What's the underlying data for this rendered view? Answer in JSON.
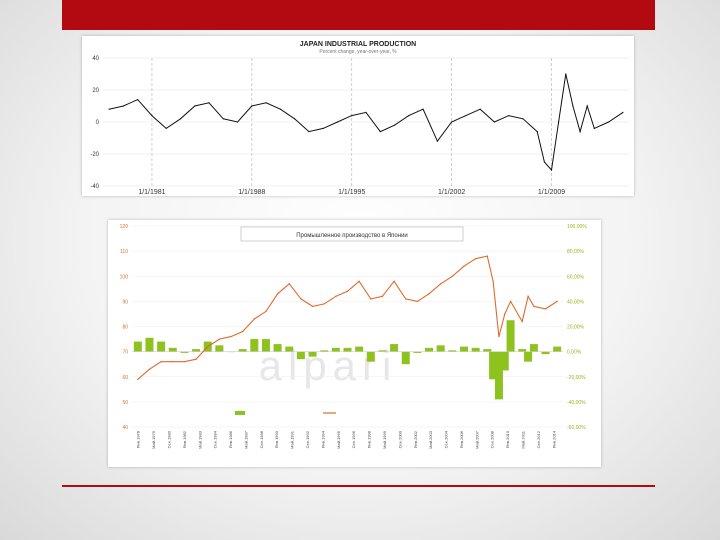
{
  "slide": {
    "accent_color": "#b30a12"
  },
  "chart_data": [
    {
      "type": "line",
      "title": "JAPAN INDUSTRIAL PRODUCTION",
      "subtitle": "Percent change, year-over-year, %",
      "ylim": [
        -40,
        40
      ],
      "y_ticks": [
        "40",
        "20",
        "0",
        "-20",
        "-40"
      ],
      "x_tick_labels": [
        "1/1/1981",
        "1/1/1988",
        "1/1/1995",
        "1/1/2002",
        "1/1/2009"
      ],
      "grid": "dashed vertical lines at each x tick",
      "series": [
        {
          "color": "#111111",
          "x": [
            1978,
            1979,
            1980,
            1981,
            1982,
            1983,
            1984,
            1985,
            1986,
            1987,
            1988,
            1989,
            1990,
            1991,
            1992,
            1993,
            1994,
            1995,
            1996,
            1997,
            1998,
            1999,
            2000,
            2001,
            2002,
            2003,
            2004,
            2005,
            2006,
            2007,
            2008,
            2008.5,
            2009,
            2009.5,
            2010,
            2010.5,
            2011,
            2011.5,
            2012,
            2013,
            2014
          ],
          "values": [
            8,
            10,
            14,
            4,
            -4,
            2,
            10,
            12,
            2,
            0,
            10,
            12,
            8,
            2,
            -6,
            -4,
            0,
            4,
            6,
            -6,
            -2,
            4,
            8,
            -12,
            0,
            4,
            8,
            0,
            4,
            2,
            -6,
            -25,
            -30,
            0,
            30,
            10,
            -6,
            10,
            -4,
            0,
            6
          ]
        }
      ]
    },
    {
      "type": "line",
      "title": "Промышленное производство в Японии",
      "ylim_left": [
        40,
        120
      ],
      "y_ticks_left": [
        "120",
        "110",
        "100",
        "90",
        "80",
        "70",
        "60",
        "50",
        "40"
      ],
      "ylim_right": [
        -60,
        100
      ],
      "y_ticks_right": [
        "100,00%",
        "80,00%",
        "60,00%",
        "40,00%",
        "20,00%",
        "0,00%",
        "-20,00%",
        "-40,00%",
        "-60,00%"
      ],
      "x_tick_labels": [
        "Янв.1978",
        "Май.1979",
        "Сен.1980",
        "Янв.1982",
        "Май.1983",
        "Сен.1984",
        "Янв.1986",
        "Май.1987",
        "Сен.1988",
        "Янв.1990",
        "Май.1991",
        "Сен.1992",
        "Янв.1994",
        "Май.1995",
        "Сен.1996",
        "Янв.1998",
        "Май.1999",
        "Сен.2000",
        "Янв.2002",
        "Май.2003",
        "Сен.2004",
        "Янв.2006",
        "Май.2007",
        "Сен.2008",
        "Янв.2010",
        "Май.2011",
        "Сен.2012",
        "Янв.2014"
      ],
      "watermark": "alpari",
      "series": [
        {
          "name": "",
          "type": "line",
          "axis": "left",
          "color": "#e06a2a",
          "x": [
            1978,
            1979,
            1980,
            1981,
            1982,
            1983,
            1984,
            1985,
            1986,
            1987,
            1988,
            1989,
            1990,
            1991,
            1992,
            1993,
            1994,
            1995,
            1996,
            1997,
            1998,
            1999,
            2000,
            2001,
            2002,
            2003,
            2004,
            2005,
            2006,
            2007,
            2008,
            2008.5,
            2009,
            2009.5,
            2010,
            2011,
            2011.5,
            2012,
            2013,
            2014
          ],
          "values": [
            59,
            63,
            66,
            66,
            66,
            67,
            72,
            75,
            76,
            78,
            83,
            86,
            93,
            97,
            91,
            88,
            89,
            92,
            94,
            98,
            91,
            92,
            98,
            91,
            90,
            93,
            97,
            100,
            104,
            107,
            108,
            98,
            76,
            85,
            90,
            82,
            92,
            88,
            87,
            90
          ]
        },
        {
          "name": "",
          "type": "bar",
          "axis": "right",
          "color": "#8dc21f",
          "x": [
            1978,
            1979,
            1980,
            1981,
            1982,
            1983,
            1984,
            1985,
            1986,
            1987,
            1988,
            1989,
            1990,
            1991,
            1992,
            1993,
            1994,
            1995,
            1996,
            1997,
            1998,
            1999,
            2000,
            2001,
            2002,
            2003,
            2004,
            2005,
            2006,
            2007,
            2008,
            2008.5,
            2009,
            2009.5,
            2010,
            2011,
            2011.5,
            2012,
            2013,
            2014
          ],
          "values": [
            8,
            11,
            8,
            3,
            -1,
            2,
            8,
            5,
            0,
            2,
            10,
            10,
            6,
            4,
            -6,
            -4,
            1,
            3,
            3,
            4,
            -8,
            1,
            6,
            -10,
            -1,
            3,
            5,
            1,
            4,
            3,
            2,
            -22,
            -38,
            -15,
            25,
            2,
            -8,
            6,
            -2,
            4
          ]
        }
      ]
    }
  ]
}
